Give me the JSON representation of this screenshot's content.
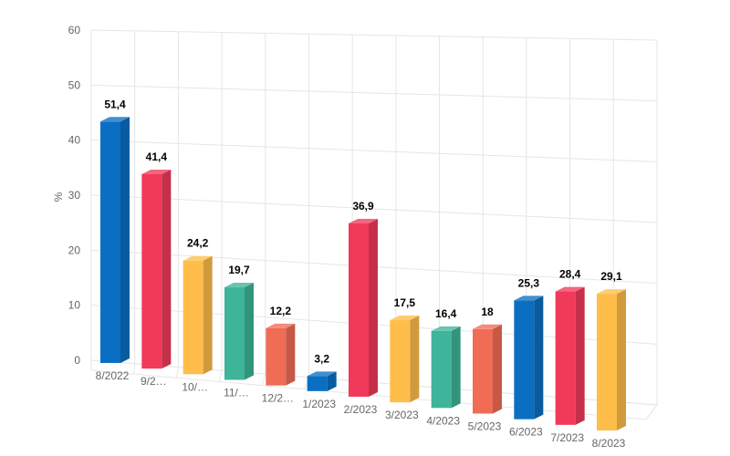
{
  "chart_data": {
    "type": "bar",
    "three_d": true,
    "ylabel": "%",
    "xlabel": "",
    "ylim": [
      0,
      60
    ],
    "yticks": [
      0,
      10,
      20,
      30,
      40,
      50,
      60
    ],
    "grid": true,
    "legend": "none",
    "categories": [
      "8/2022",
      "9/2…",
      "10/…",
      "11/…",
      "12/2…",
      "1/2023",
      "2/2023",
      "3/2023",
      "4/2023",
      "5/2023",
      "6/2023",
      "7/2023",
      "8/2023"
    ],
    "values": [
      51.4,
      41.4,
      24.2,
      19.7,
      12.2,
      3.2,
      36.9,
      17.5,
      16.4,
      18,
      25.3,
      28.4,
      29.1
    ],
    "value_labels": [
      "51,4",
      "41,4",
      "24,2",
      "19,7",
      "12,2",
      "3,2",
      "36,9",
      "17,5",
      "16,4",
      "18",
      "25,3",
      "28,4",
      "29,1"
    ],
    "colors": [
      "#0a6fc2",
      "#f1395a",
      "#ffbd4a",
      "#3eb49a",
      "#f06c55",
      "#0a6fc2",
      "#f1395a",
      "#ffbd4a",
      "#3eb49a",
      "#f06c55",
      "#0a6fc2",
      "#f1395a",
      "#ffbd4a"
    ]
  }
}
